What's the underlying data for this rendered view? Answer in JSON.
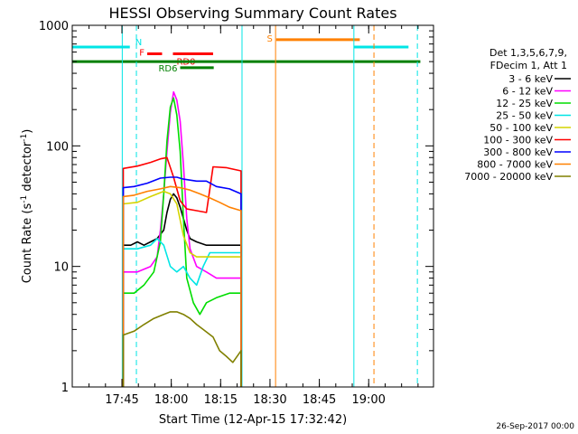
{
  "chart_data": {
    "type": "line",
    "title": "HESSI Observing Summary Count Rates",
    "xlabel": "Start Time (12-Apr-15 17:32:42)",
    "ylabel_main": "Count Rate (s",
    "ylabel_sup1": "-1",
    "ylabel_mid": " detector",
    "ylabel_sup2": "-1",
    "ylabel_end": ")",
    "yscale": "log",
    "ylim": [
      1,
      1000
    ],
    "xlim_minutes": [
      -2.8,
      107.0
    ],
    "x_ticks": [
      {
        "m": 12.3,
        "label": "17:45"
      },
      {
        "m": 27.3,
        "label": "18:00"
      },
      {
        "m": 42.3,
        "label": "18:15"
      },
      {
        "m": 57.3,
        "label": "18:30"
      },
      {
        "m": 72.3,
        "label": "18:45"
      },
      {
        "m": 87.3,
        "label": "19:00"
      }
    ],
    "y_ticks": [
      {
        "v": 1,
        "label": "1"
      },
      {
        "v": 10,
        "label": "10"
      },
      {
        "v": 100,
        "label": "100"
      },
      {
        "v": 1000,
        "label": "1000"
      }
    ],
    "legend": {
      "header": [
        "Det 1,3,5,6,7,9,",
        "FDecim 1, Att 1"
      ],
      "entries": [
        {
          "label": "3 - 6 keV",
          "color": "#000000"
        },
        {
          "label": "6 - 12 keV",
          "color": "#ff00ff"
        },
        {
          "label": "12 - 25 keV",
          "color": "#00dd00"
        },
        {
          "label": "25 - 50 keV",
          "color": "#00e5e5"
        },
        {
          "label": "50 - 100 keV",
          "color": "#d4d400"
        },
        {
          "label": "100 - 300 keV",
          "color": "#ff0000"
        },
        {
          "label": "300 - 800 keV",
          "color": "#0000ff"
        },
        {
          "label": "800 - 7000 keV",
          "color": "#ff8000"
        },
        {
          "label": "7000 - 20000 keV",
          "color": "#808000"
        }
      ]
    },
    "series": [
      {
        "name": "3 - 6 keV",
        "color": "#000000",
        "points": [
          [
            12.7,
            15
          ],
          [
            15,
            15
          ],
          [
            17,
            16
          ],
          [
            19,
            15
          ],
          [
            21,
            16
          ],
          [
            23,
            17
          ],
          [
            25,
            20
          ],
          [
            26,
            28
          ],
          [
            27,
            36
          ],
          [
            28,
            40
          ],
          [
            29,
            37
          ],
          [
            30,
            31
          ],
          [
            31,
            25
          ],
          [
            32,
            20
          ],
          [
            33,
            17
          ],
          [
            35,
            16
          ],
          [
            38,
            15
          ],
          [
            41,
            15
          ],
          [
            45,
            15
          ],
          [
            48.5,
            15
          ]
        ]
      },
      {
        "name": "6 - 12 keV",
        "color": "#ff00ff",
        "points": [
          [
            12.7,
            9
          ],
          [
            17,
            9
          ],
          [
            21,
            10
          ],
          [
            23,
            12
          ],
          [
            24,
            20
          ],
          [
            25,
            40
          ],
          [
            26,
            90
          ],
          [
            27,
            190
          ],
          [
            28,
            280
          ],
          [
            29,
            240
          ],
          [
            30,
            160
          ],
          [
            31,
            70
          ],
          [
            32,
            25
          ],
          [
            33,
            14
          ],
          [
            35,
            10
          ],
          [
            38,
            9
          ],
          [
            41,
            8
          ],
          [
            45,
            8
          ],
          [
            48.5,
            8
          ]
        ]
      },
      {
        "name": "12 - 25 keV",
        "color": "#00dd00",
        "points": [
          [
            12.7,
            6
          ],
          [
            16,
            6
          ],
          [
            19,
            7
          ],
          [
            22,
            9
          ],
          [
            24,
            16
          ],
          [
            25,
            40
          ],
          [
            26,
            110
          ],
          [
            27,
            210
          ],
          [
            28,
            250
          ],
          [
            29,
            180
          ],
          [
            30,
            90
          ],
          [
            31,
            25
          ],
          [
            32,
            8
          ],
          [
            34,
            5
          ],
          [
            36,
            4
          ],
          [
            38,
            5
          ],
          [
            41,
            5.5
          ],
          [
            45,
            6
          ],
          [
            48.5,
            6
          ]
        ]
      },
      {
        "name": "25 - 50 keV",
        "color": "#00e5e5",
        "points": [
          [
            12.7,
            14
          ],
          [
            17,
            14
          ],
          [
            21,
            15
          ],
          [
            23,
            17
          ],
          [
            25,
            15
          ],
          [
            27,
            10
          ],
          [
            29,
            9
          ],
          [
            31,
            10
          ],
          [
            33,
            8
          ],
          [
            35,
            7
          ],
          [
            37,
            10
          ],
          [
            39,
            13
          ],
          [
            42,
            13
          ],
          [
            45,
            13
          ],
          [
            48.5,
            13
          ]
        ]
      },
      {
        "name": "50 - 100 keV",
        "color": "#d4d400",
        "points": [
          [
            12.7,
            33
          ],
          [
            17,
            34
          ],
          [
            21,
            38
          ],
          [
            25,
            42
          ],
          [
            27,
            40
          ],
          [
            29,
            33
          ],
          [
            31,
            18
          ],
          [
            33,
            13
          ],
          [
            35,
            12
          ],
          [
            37,
            12
          ],
          [
            40,
            12
          ],
          [
            44,
            12
          ],
          [
            48.5,
            12
          ]
        ]
      },
      {
        "name": "100 - 300 keV",
        "color": "#ff0000",
        "points": [
          [
            12.7,
            65
          ],
          [
            17,
            68
          ],
          [
            21,
            73
          ],
          [
            24,
            78
          ],
          [
            26,
            80
          ],
          [
            28,
            55
          ],
          [
            30,
            35
          ],
          [
            32,
            30
          ],
          [
            35,
            29
          ],
          [
            38,
            28
          ],
          [
            40,
            67
          ],
          [
            44,
            66
          ],
          [
            48.5,
            62
          ]
        ]
      },
      {
        "name": "300 - 800 keV",
        "color": "#0000ff",
        "points": [
          [
            12.7,
            45
          ],
          [
            16,
            46
          ],
          [
            20,
            49
          ],
          [
            24,
            54
          ],
          [
            27,
            55
          ],
          [
            29,
            55
          ],
          [
            31,
            53
          ],
          [
            33,
            52
          ],
          [
            35,
            51
          ],
          [
            38,
            51
          ],
          [
            41,
            46
          ],
          [
            45,
            44
          ],
          [
            48.5,
            40
          ]
        ]
      },
      {
        "name": "800 - 7000 keV",
        "color": "#ff8000",
        "points": [
          [
            12.7,
            38
          ],
          [
            16,
            39
          ],
          [
            20,
            42
          ],
          [
            24,
            44
          ],
          [
            27,
            46
          ],
          [
            30,
            45
          ],
          [
            33,
            43
          ],
          [
            36,
            40
          ],
          [
            39,
            37
          ],
          [
            42,
            34
          ],
          [
            45,
            31
          ],
          [
            48.5,
            29
          ]
        ]
      },
      {
        "name": "7000 - 20000 keV",
        "color": "#808000",
        "points": [
          [
            12.7,
            2.7
          ],
          [
            16,
            2.9
          ],
          [
            19,
            3.3
          ],
          [
            22,
            3.7
          ],
          [
            25,
            4.0
          ],
          [
            27,
            4.2
          ],
          [
            29,
            4.2
          ],
          [
            31,
            4.0
          ],
          [
            33,
            3.7
          ],
          [
            35,
            3.3
          ],
          [
            37,
            3.0
          ],
          [
            40,
            2.6
          ],
          [
            42,
            2.0
          ],
          [
            44,
            1.8
          ],
          [
            46,
            1.6
          ],
          [
            48.5,
            2.0
          ]
        ]
      }
    ],
    "flags": [
      {
        "label": "N",
        "color": "#00e5e5",
        "value": 660,
        "segments": [
          [
            -2.8,
            14.7
          ],
          [
            82.8,
            99.4
          ]
        ]
      },
      {
        "label": "S",
        "color": "#ff8000",
        "value": 760,
        "segments": [
          [
            59.2,
            84.6
          ]
        ]
      },
      {
        "label": "F",
        "color": "#ff0000",
        "value": 580,
        "segments": [
          [
            20.0,
            24.5
          ]
        ]
      },
      {
        "label": "RD0",
        "color": "#ff0000",
        "value": 580,
        "segments": [
          [
            27.8,
            40.0
          ]
        ]
      },
      {
        "label": "RD6",
        "color": "#008000",
        "value": 445,
        "segments": [
          [
            30.0,
            40.2
          ]
        ]
      },
      {
        "label": "",
        "color": "#008000",
        "value": 500,
        "segments": [
          [
            -2.8,
            103.0
          ]
        ]
      }
    ],
    "vlines": [
      {
        "m": -2.8,
        "color": "#00e5e5",
        "dash": false
      },
      {
        "m": 12.4,
        "color": "#00e5e5",
        "dash": false
      },
      {
        "m": 16.7,
        "color": "#00e5e5",
        "dash": true
      },
      {
        "m": 48.8,
        "color": "#00e5e5",
        "dash": false
      },
      {
        "m": 59.0,
        "color": "#ff8000",
        "dash": false
      },
      {
        "m": 82.8,
        "color": "#00e5e5",
        "dash": false
      },
      {
        "m": 88.9,
        "color": "#ff8000",
        "dash": true
      },
      {
        "m": 102.1,
        "color": "#00e5e5",
        "dash": true
      }
    ]
  },
  "footer": {
    "timestamp": "26-Sep-2017 00:00"
  }
}
